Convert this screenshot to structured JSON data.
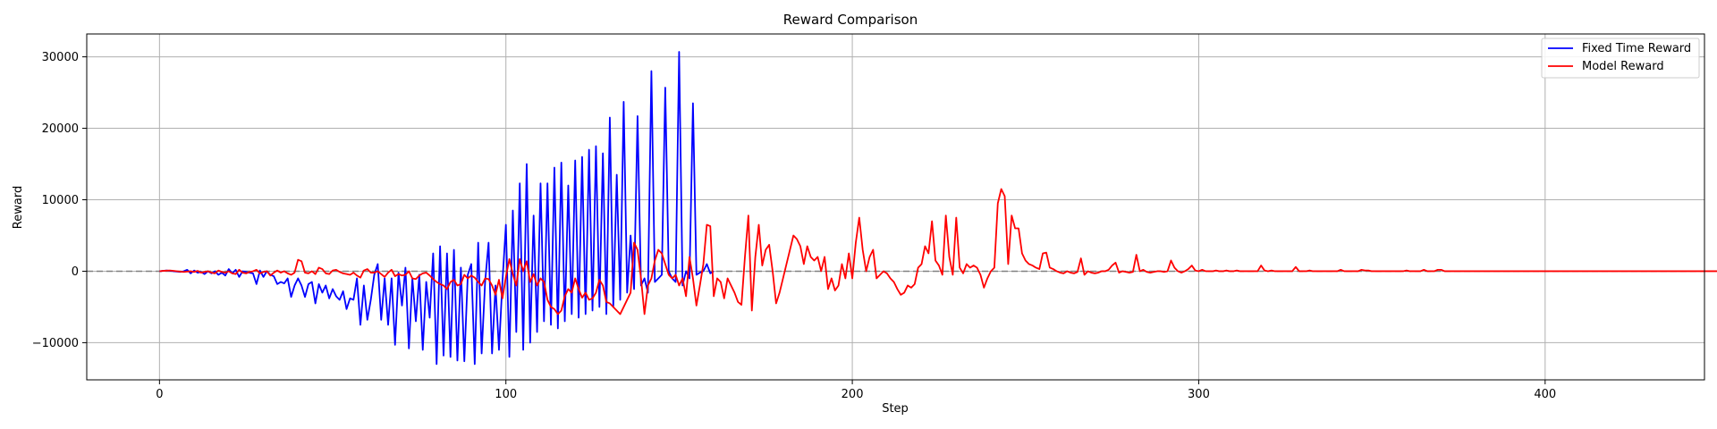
{
  "chart_data": {
    "type": "line",
    "title": "Reward Comparison",
    "xlabel": "Step",
    "ylabel": "Reward",
    "xlim": [
      -21,
      446
    ],
    "ylim": [
      -15200,
      33200
    ],
    "x_ticks": [
      0,
      100,
      200,
      300,
      400
    ],
    "y_ticks": [
      -10000,
      0,
      10000,
      20000,
      30000
    ],
    "grid": true,
    "legend_position": "top-right",
    "zero_line": {
      "y": 0,
      "style": "dashed",
      "color": "#808080"
    },
    "series": [
      {
        "name": "Fixed Time Reward",
        "color": "#0000ff",
        "x_start": 0,
        "values": [
          0,
          50,
          100,
          60,
          0,
          -50,
          -100,
          0,
          200,
          -300,
          100,
          -200,
          -100,
          -400,
          0,
          -300,
          0,
          -500,
          -200,
          -600,
          300,
          -300,
          200,
          -800,
          0,
          -100,
          -200,
          -300,
          -1800,
          100,
          -800,
          0,
          -500,
          -700,
          -1800,
          -1500,
          -1700,
          -1000,
          -3600,
          -2000,
          -1000,
          -2000,
          -3600,
          -1800,
          -1500,
          -4500,
          -1800,
          -3000,
          -2000,
          -3800,
          -2500,
          -3500,
          -4000,
          -2800,
          -5300,
          -3800,
          -4000,
          -1000,
          -7500,
          -2000,
          -6800,
          -4000,
          -500,
          1000,
          -6800,
          -1000,
          -7500,
          -1000,
          -10300,
          -200,
          -4800,
          500,
          -10800,
          -1000,
          -7000,
          -500,
          -11000,
          -1500,
          -6500,
          2500,
          -13000,
          3500,
          -11800,
          2500,
          -12000,
          3000,
          -12500,
          500,
          -12600,
          -500,
          1000,
          -13000,
          4000,
          -11500,
          -1500,
          4000,
          -11500,
          -2000,
          -11000,
          -1500,
          6500,
          -12000,
          8500,
          -8500,
          12300,
          -11000,
          15000,
          -10000,
          7800,
          -8500,
          12300,
          -7000,
          12300,
          -7500,
          14500,
          -8000,
          15200,
          -7000,
          12000,
          -6000,
          15500,
          -6500,
          16000,
          -6000,
          17000,
          -5500,
          17500,
          -5000,
          16500,
          -6000,
          21500,
          -5000,
          13500,
          -4000,
          23700,
          -3000,
          5000,
          -2500,
          21700,
          -2000,
          -1000,
          -3000,
          28000,
          -1500,
          -1000,
          -500,
          25700,
          0,
          -1000,
          -1500,
          30700,
          -2000,
          0,
          -1000,
          23500,
          -500,
          -200,
          0,
          1000,
          -300,
          0
        ],
        "note": ""
      },
      {
        "name": "Model Reward",
        "color": "#ff0000",
        "x_start": 0,
        "values": [
          0,
          50,
          80,
          100,
          60,
          0,
          -50,
          -100,
          -50,
          0,
          -100,
          50,
          -200,
          -100,
          0,
          -200,
          -300,
          100,
          -100,
          -200,
          0,
          -300,
          -400,
          200,
          -200,
          -300,
          -100,
          0,
          200,
          -300,
          -100,
          0,
          -600,
          -200,
          100,
          -200,
          0,
          -300,
          -500,
          -200,
          1600,
          1400,
          -200,
          -300,
          0,
          -400,
          500,
          300,
          -300,
          -400,
          100,
          200,
          -100,
          -300,
          -400,
          -500,
          -200,
          -600,
          -900,
          100,
          300,
          -200,
          -200,
          0,
          -400,
          -800,
          -200,
          200,
          -700,
          -400,
          -600,
          -500,
          0,
          -1000,
          -1100,
          -600,
          -300,
          -200,
          -600,
          -1100,
          -1500,
          -1800,
          -2000,
          -2500,
          -1500,
          -1200,
          -2000,
          -1800,
          -500,
          -1000,
          -600,
          -900,
          -1500,
          -2000,
          -1000,
          -1100,
          -2000,
          -3300,
          -1200,
          -3800,
          -800,
          1700,
          -400,
          -2000,
          1700,
          0,
          1400,
          -1500,
          -400,
          -2000,
          -1000,
          -1500,
          -4000,
          -5000,
          -5300,
          -6000,
          -5500,
          -3500,
          -2500,
          -3000,
          -1000,
          -2500,
          -3700,
          -3000,
          -4000,
          -3800,
          -3000,
          -1200,
          -2000,
          -4300,
          -4500,
          -5000,
          -5500,
          -6000,
          -5000,
          -4000,
          -3000,
          4000,
          3000,
          -1000,
          -6000,
          -2000,
          -1000,
          1500,
          3000,
          2500,
          1000,
          -500,
          -1000,
          -500,
          -2000,
          -1000,
          -3500,
          2000,
          -1000,
          -4800,
          -2000,
          1000,
          6500,
          6300,
          -3500,
          -1000,
          -1500,
          -3800,
          -1000,
          -2000,
          -3000,
          -4300,
          -4700,
          2000,
          7800,
          -5500,
          2000,
          6500,
          800,
          3000,
          3700,
          0,
          -4500,
          -3000,
          -1000,
          1000,
          3000,
          5000,
          4500,
          3500,
          1000,
          3500,
          2000,
          1500,
          2000,
          0,
          2000,
          -2500,
          -1000,
          -2700,
          -2000,
          1000,
          -1000,
          2500,
          -1000,
          4000,
          7500,
          3000,
          0,
          2000,
          3000,
          -1000,
          -500,
          0,
          -300,
          -1000,
          -1500,
          -2500,
          -3300,
          -3000,
          -2000,
          -2300,
          -1800,
          500,
          1000,
          3500,
          2500,
          7000,
          1500,
          800,
          -500,
          7800,
          2000,
          -500,
          7500,
          500,
          -300,
          1000,
          500,
          800,
          500,
          -500,
          -2300,
          -1000,
          0,
          500,
          9500,
          11500,
          10500,
          1000,
          7800,
          6000,
          6000,
          2500,
          1500,
          1000,
          800,
          500,
          300,
          2500,
          2600,
          500,
          300,
          0,
          -200,
          -300,
          0,
          -200,
          -300,
          -100,
          1800,
          -500,
          0,
          -200,
          -300,
          -200,
          0,
          0,
          200,
          800,
          1200,
          -200,
          0,
          -100,
          -200,
          -100,
          2300,
          0,
          200,
          -100,
          -200,
          -100,
          0,
          0,
          -100,
          0,
          1500,
          500,
          0,
          -200,
          0,
          300,
          800,
          100,
          0,
          200,
          0,
          0,
          0,
          100,
          0,
          0,
          100,
          0,
          0,
          100,
          0,
          0,
          0,
          0,
          0,
          0,
          800,
          100,
          0,
          100,
          0,
          0,
          0,
          0,
          0,
          0,
          600,
          0,
          0,
          0,
          100,
          0,
          0,
          0,
          0,
          0,
          0,
          0,
          0,
          200,
          0,
          0,
          0,
          0,
          0,
          200,
          100,
          100,
          0,
          0,
          0,
          0,
          0,
          0,
          0,
          0,
          0,
          0,
          100,
          0,
          0,
          0,
          0,
          200,
          0,
          0,
          0,
          200,
          200,
          0,
          0,
          0,
          0,
          0,
          0,
          0,
          0,
          0,
          0,
          0,
          0,
          0,
          0,
          0,
          0,
          0,
          0,
          0,
          0,
          0,
          0,
          0,
          0,
          0,
          0,
          0,
          0,
          0,
          0,
          0,
          0,
          0,
          0,
          0,
          0,
          0,
          0,
          0,
          0,
          0,
          0,
          0,
          0,
          0,
          0,
          0,
          0,
          0,
          0,
          0,
          0,
          0,
          0,
          0,
          0,
          0,
          0,
          0,
          0,
          0,
          0,
          0,
          0,
          0,
          0,
          0,
          0,
          0,
          0,
          0,
          0,
          0,
          0,
          0,
          0,
          0,
          0,
          0,
          0
        ]
      }
    ]
  }
}
